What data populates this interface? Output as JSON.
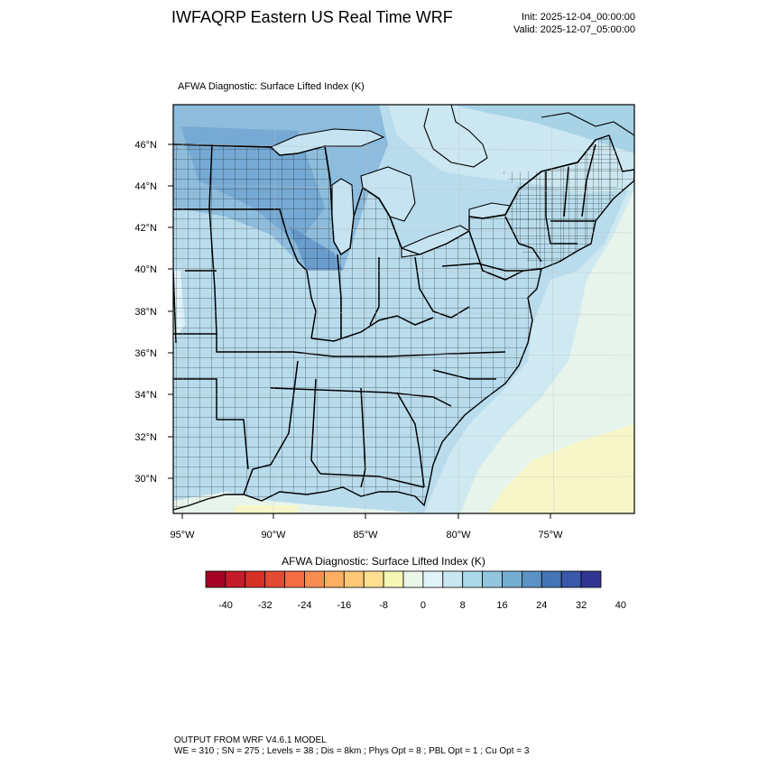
{
  "header": {
    "title": "IWFAQRP Eastern US Real Time WRF",
    "init": "Init: 2025-12-04_00:00:00",
    "valid": "Valid: 2025-12-07_05:00:00"
  },
  "plot_label": "AFWA Diagnostic: Surface Lifted Index   (K)",
  "map": {
    "lat_labels": [
      "46°N",
      "44°N",
      "42°N",
      "40°N",
      "38°N",
      "36°N",
      "34°N",
      "32°N",
      "30°N"
    ],
    "lon_labels": [
      "95°W",
      "90°W",
      "85°W",
      "80°W",
      "75°W"
    ]
  },
  "colorbar": {
    "title": "AFWA Diagnostic: Surface Lifted Index  (K)",
    "tick_labels": [
      "-40",
      "-32",
      "-24",
      "-16",
      "-8",
      "0",
      "8",
      "16",
      "24",
      "32",
      "40"
    ],
    "colors": [
      "#a50026",
      "#c51b2a",
      "#d73027",
      "#e34a33",
      "#f46d43",
      "#f88d52",
      "#fdae61",
      "#fec877",
      "#fee090",
      "#f6f6b5",
      "#e9f6e8",
      "#e0f3f8",
      "#c8e6f0",
      "#abd9e9",
      "#92c5de",
      "#74add1",
      "#5b91c4",
      "#4575b4",
      "#3a58a8",
      "#313695"
    ]
  },
  "footer": {
    "line1": "OUTPUT FROM WRF V4.6.1 MODEL",
    "line2": "WE = 310 ; SN = 275 ; Levels = 38 ; Dis = 8km ; Phys Opt = 8 ; PBL Opt = 1 ; Cu Opt = 3"
  }
}
